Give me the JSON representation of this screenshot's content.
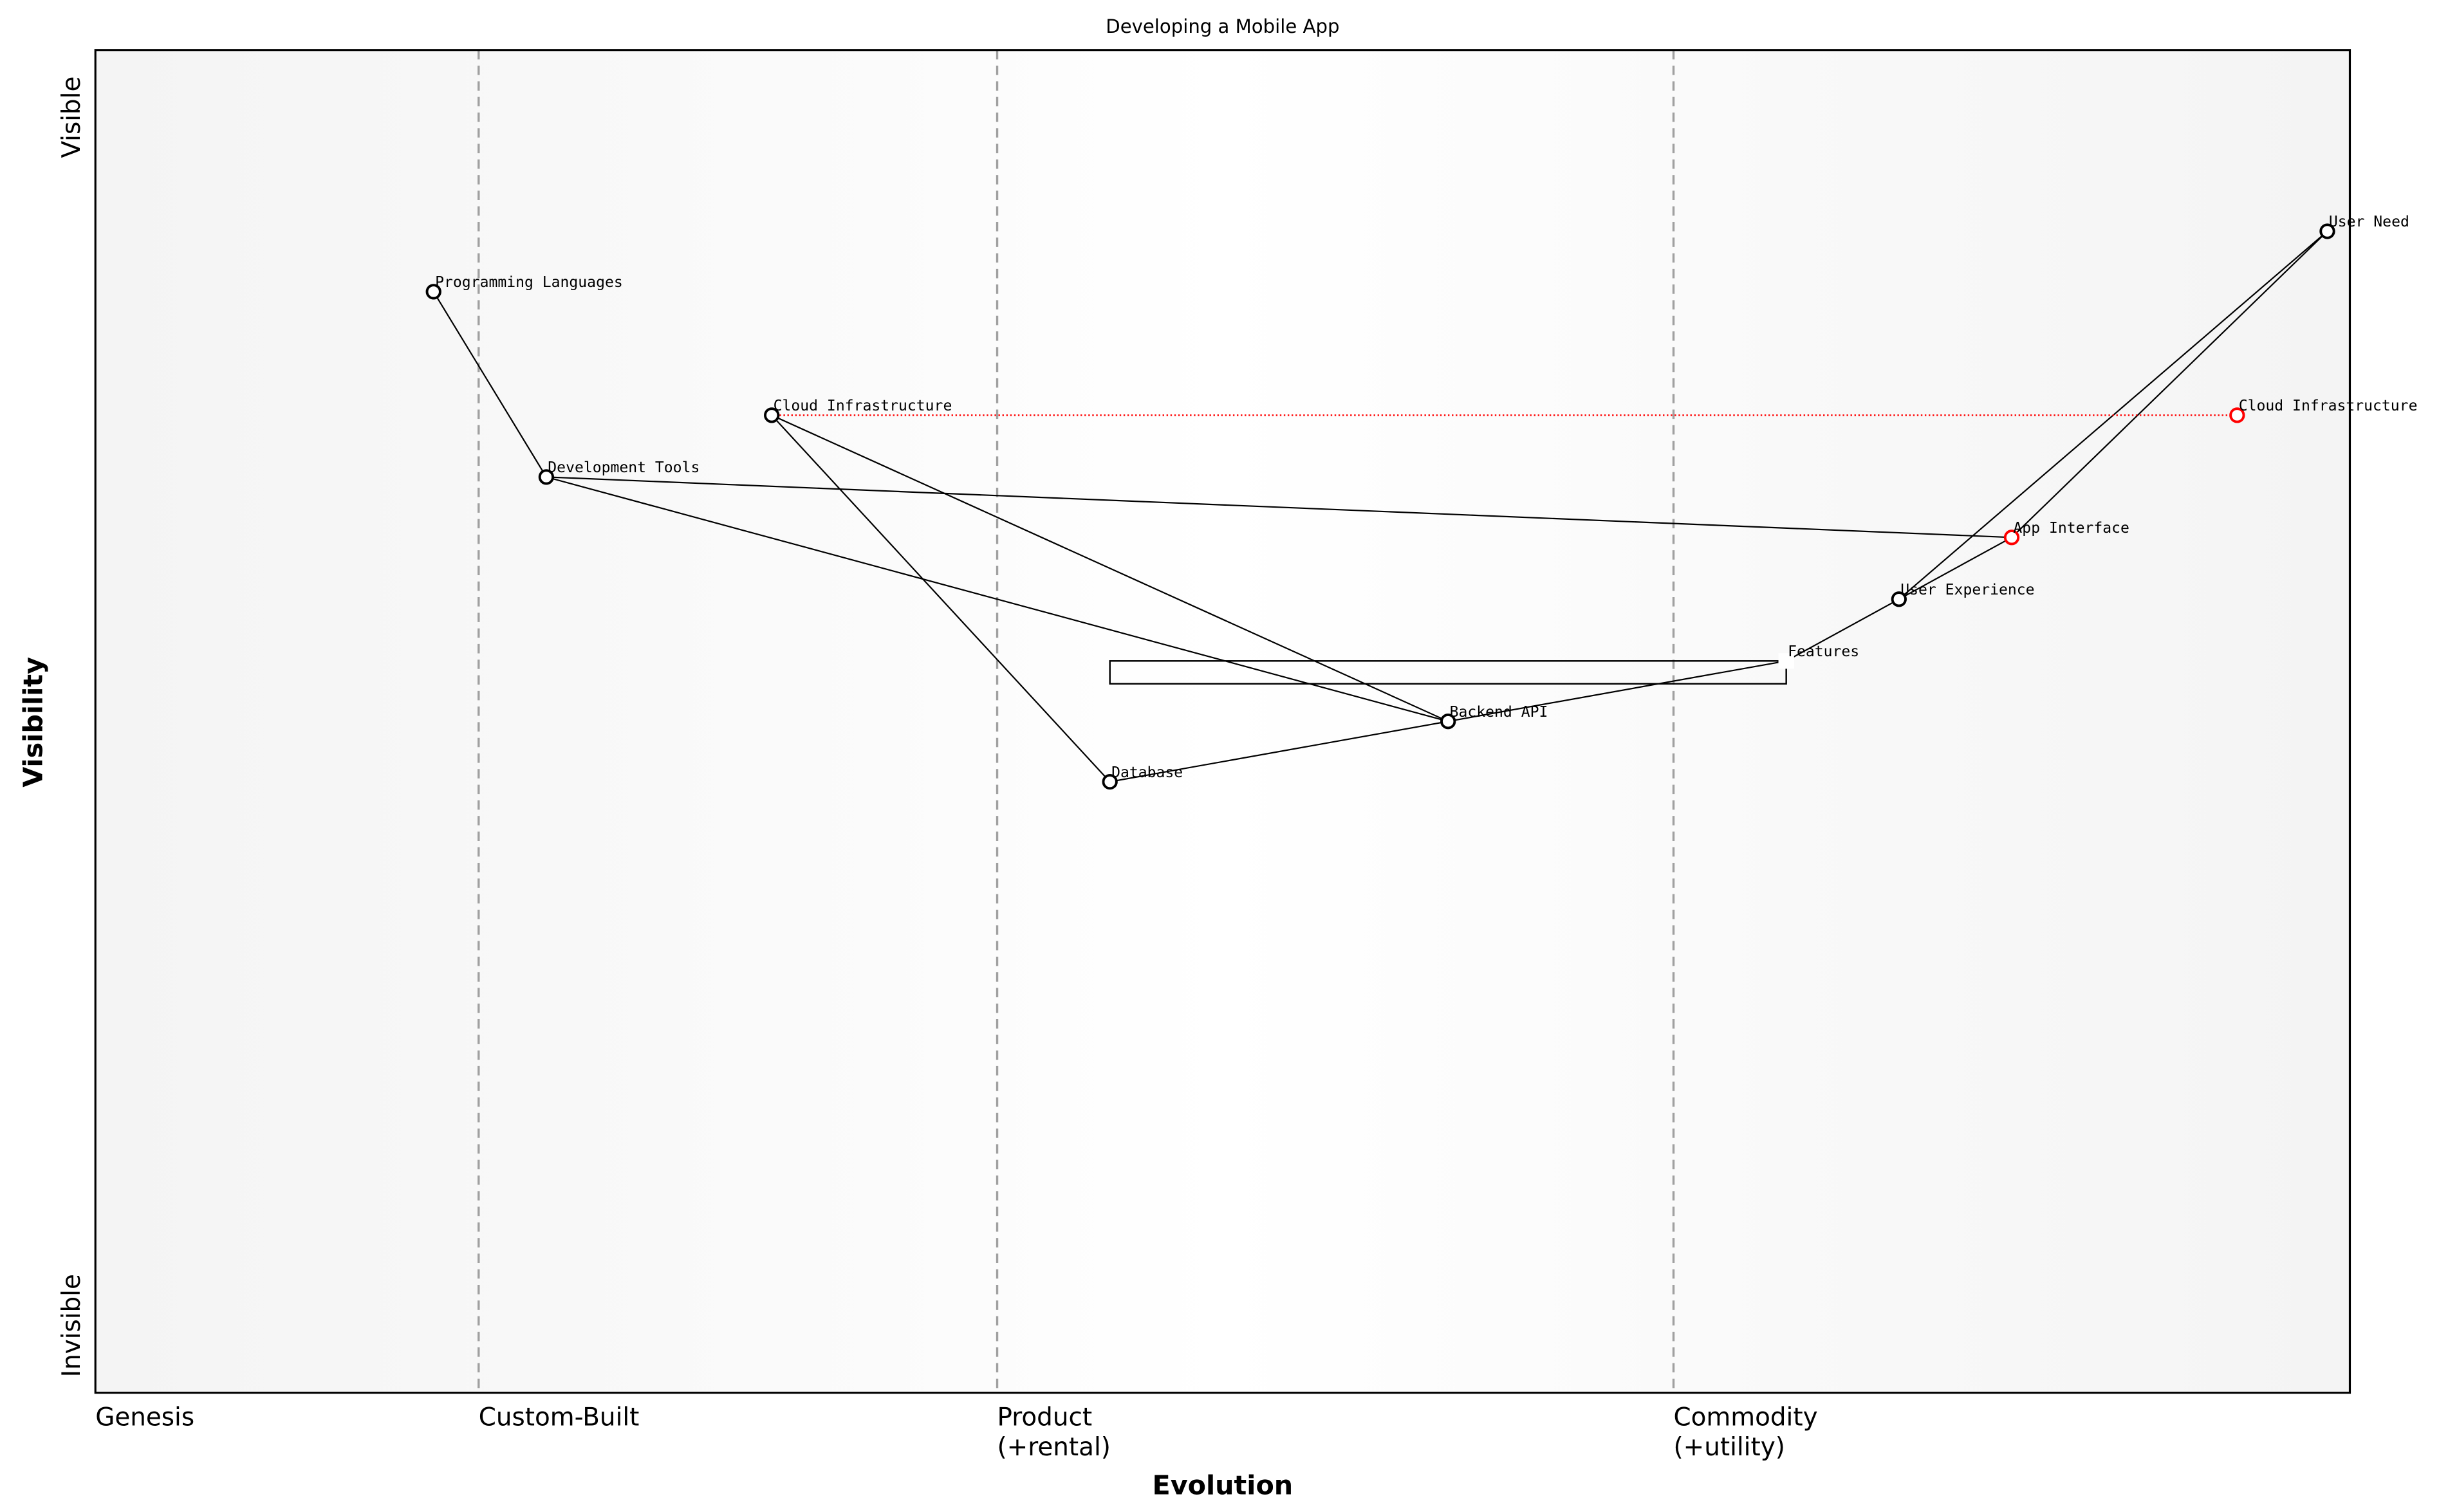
{
  "chart_data": {
    "type": "wardley-map",
    "title": "Developing a Mobile App",
    "xlabel": "Evolution",
    "ylabel": "Visibility",
    "xlim": [
      0,
      1
    ],
    "ylim": [
      0,
      1
    ],
    "y_ticks": [
      {
        "value": 0.05,
        "label": "Invisible"
      },
      {
        "value": 0.95,
        "label": "Visible"
      }
    ],
    "stages": [
      {
        "value": 0.0,
        "label": "Genesis"
      },
      {
        "value": 0.17,
        "label": "Custom-Built"
      },
      {
        "value": 0.4,
        "label": "Product\n(+rental)"
      },
      {
        "value": 0.7,
        "label": "Commodity\n(+utility)"
      }
    ],
    "components": [
      {
        "id": "prog",
        "name": "Programming Languages",
        "evolution": 0.15,
        "visibility": 0.82,
        "color": "#000000"
      },
      {
        "id": "dev",
        "name": "Development Tools",
        "evolution": 0.2,
        "visibility": 0.682,
        "color": "#000000"
      },
      {
        "id": "cloud",
        "name": "Cloud Infrastructure",
        "evolution": 0.3,
        "visibility": 0.728,
        "color": "#000000"
      },
      {
        "id": "db",
        "name": "Database",
        "evolution": 0.45,
        "visibility": 0.455,
        "color": "#000000"
      },
      {
        "id": "api",
        "name": "Backend API",
        "evolution": 0.6,
        "visibility": 0.5,
        "color": "#000000"
      },
      {
        "id": "feat",
        "name": "Features",
        "evolution": 0.75,
        "visibility": 0.545,
        "color": "#ffffff",
        "hidden_marker": true
      },
      {
        "id": "ux",
        "name": "User Experience",
        "evolution": 0.8,
        "visibility": 0.591,
        "color": "#000000"
      },
      {
        "id": "app",
        "name": "App Interface",
        "evolution": 0.85,
        "visibility": 0.637,
        "color": "#ff0000"
      },
      {
        "id": "need",
        "name": "User Need",
        "evolution": 0.99,
        "visibility": 0.865,
        "color": "#000000"
      },
      {
        "id": "cloud2",
        "name": "Cloud Infrastructure",
        "evolution": 0.95,
        "visibility": 0.728,
        "color": "#ff0000"
      }
    ],
    "links": [
      [
        "prog",
        "dev"
      ],
      [
        "dev",
        "app"
      ],
      [
        "dev",
        "api"
      ],
      [
        "cloud",
        "api"
      ],
      [
        "cloud",
        "db"
      ],
      [
        "db",
        "api"
      ],
      [
        "api",
        "feat"
      ],
      [
        "feat",
        "ux"
      ],
      [
        "ux",
        "app"
      ],
      [
        "ux",
        "need"
      ],
      [
        "app",
        "need"
      ]
    ],
    "evolve": [
      {
        "from": "cloud",
        "to": "cloud2",
        "color": "#ff0000"
      }
    ],
    "pipeline": {
      "component": "feat",
      "evolution_range": [
        0.45,
        0.75
      ],
      "visibility_range": [
        0.528,
        0.545
      ]
    }
  }
}
